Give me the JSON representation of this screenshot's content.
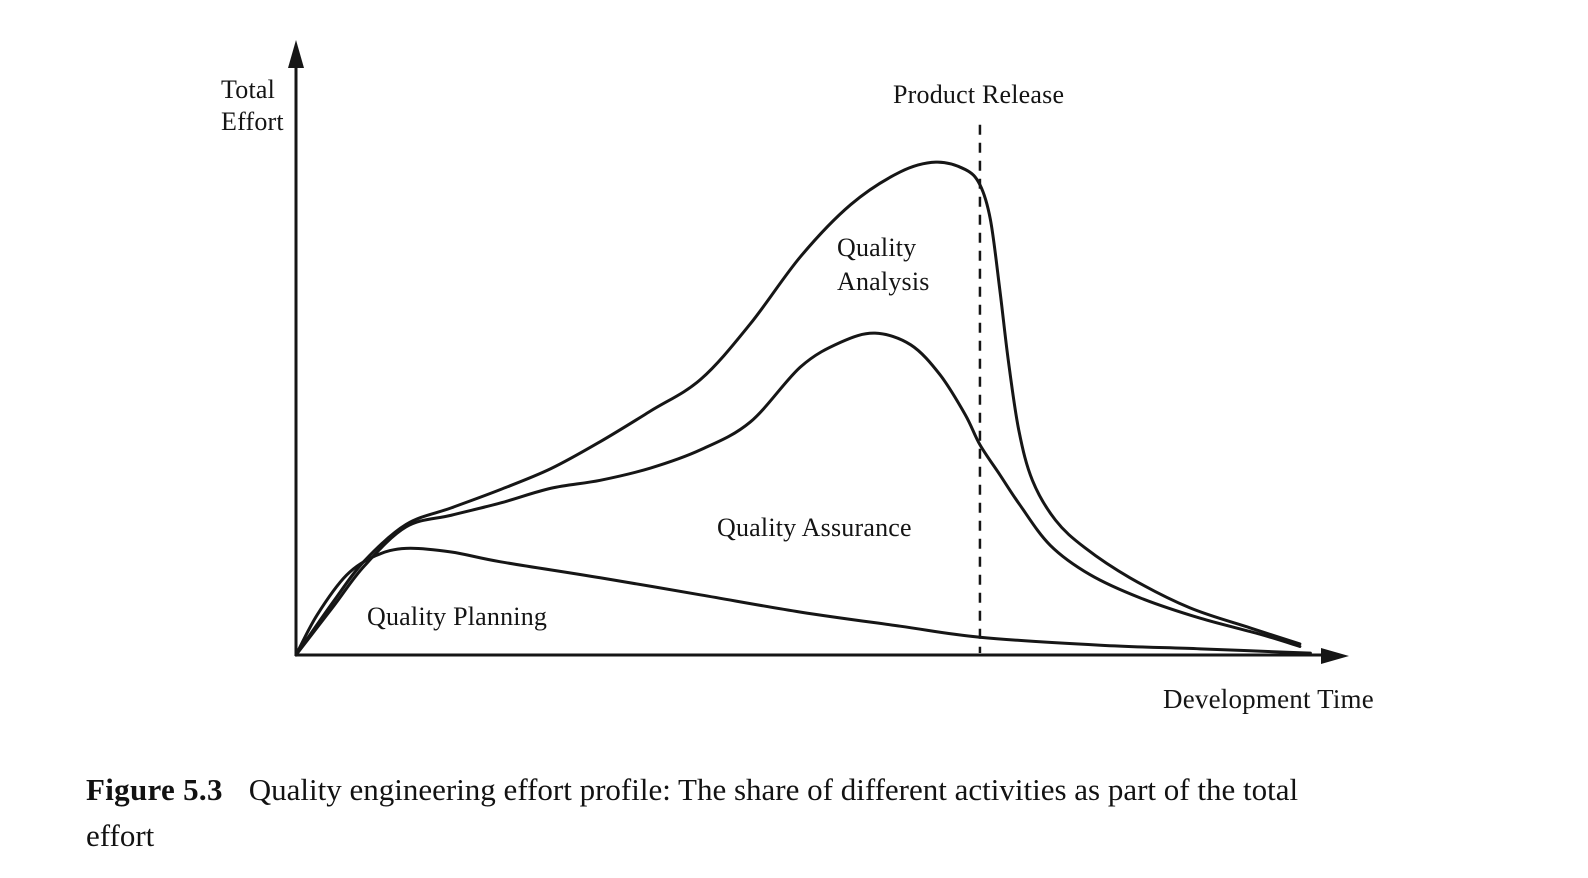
{
  "figure": {
    "caption_label": "Figure 5.3",
    "caption_line1": "Quality engineering effort profile: The share of different activities as part of the total",
    "caption_line2": "effort"
  },
  "chart_data": {
    "type": "line",
    "title": "Quality engineering effort profile",
    "xlabel": "Development Time",
    "ylabel": "Total Effort",
    "xlim": [
      0,
      100
    ],
    "ylim": [
      0,
      100
    ],
    "grid": false,
    "legend": "none (regions labeled inline)",
    "axes_note": "Both axes are unlabeled qualitative scales; point values are estimated relative units 0-100",
    "ink_color": "#161616",
    "annotations": {
      "product_release": {
        "label": "Product Release",
        "x": 65.2,
        "y_top": 86.5,
        "style": "dashed-vertical-line"
      }
    },
    "region_labels": [
      "Quality Analysis",
      "Quality Assurance",
      "Quality Planning"
    ],
    "series": [
      {
        "name": "Total effort (upper boundary of Quality Analysis region)",
        "points": [
          [
            0,
            0
          ],
          [
            3.6,
            8.8
          ],
          [
            6.5,
            15.3
          ],
          [
            10.5,
            21.3
          ],
          [
            14.8,
            24.0
          ],
          [
            19.5,
            27.0
          ],
          [
            24.3,
            30.4
          ],
          [
            29.0,
            34.8
          ],
          [
            33.8,
            39.8
          ],
          [
            38.6,
            45.0
          ],
          [
            43.3,
            54.0
          ],
          [
            48.1,
            65.0
          ],
          [
            52.9,
            73.5
          ],
          [
            57.6,
            78.8
          ],
          [
            61.0,
            80.4
          ],
          [
            63.8,
            79.2
          ],
          [
            65.2,
            76.7
          ],
          [
            66.2,
            71.0
          ],
          [
            67.1,
            59.5
          ],
          [
            67.9,
            48.1
          ],
          [
            68.9,
            36.7
          ],
          [
            70.2,
            28.5
          ],
          [
            72.4,
            22.0
          ],
          [
            75.2,
            17.5
          ],
          [
            79.5,
            12.6
          ],
          [
            85.2,
            7.7
          ],
          [
            91.0,
            4.4
          ],
          [
            95.7,
            1.8
          ]
        ]
      },
      {
        "name": "Upper boundary of Quality Assurance region",
        "points": [
          [
            0,
            0
          ],
          [
            3.6,
            8.0
          ],
          [
            6.5,
            14.5
          ],
          [
            10.5,
            20.9
          ],
          [
            14.8,
            22.8
          ],
          [
            19.5,
            24.8
          ],
          [
            24.3,
            27.2
          ],
          [
            29.0,
            28.5
          ],
          [
            33.8,
            30.5
          ],
          [
            38.6,
            33.5
          ],
          [
            43.3,
            38.0
          ],
          [
            48.1,
            47.0
          ],
          [
            51.9,
            51.0
          ],
          [
            55.2,
            52.5
          ],
          [
            58.6,
            50.6
          ],
          [
            61.4,
            45.7
          ],
          [
            63.8,
            39.2
          ],
          [
            65.2,
            34.3
          ],
          [
            67.1,
            29.4
          ],
          [
            69.0,
            24.5
          ],
          [
            71.9,
            17.9
          ],
          [
            75.7,
            13.1
          ],
          [
            80.5,
            9.3
          ],
          [
            86.2,
            6.0
          ],
          [
            91.9,
            3.4
          ],
          [
            95.7,
            1.4
          ]
        ]
      },
      {
        "name": "Quality Planning (lowest curve)",
        "points": [
          [
            0,
            0
          ],
          [
            2.0,
            6.5
          ],
          [
            4.8,
            13.0
          ],
          [
            7.6,
            16.2
          ],
          [
            10.5,
            17.4
          ],
          [
            14.8,
            16.8
          ],
          [
            19.5,
            15.2
          ],
          [
            29.0,
            12.6
          ],
          [
            38.6,
            9.8
          ],
          [
            48.1,
            7.0
          ],
          [
            57.6,
            4.7
          ],
          [
            65.2,
            2.9
          ],
          [
            76.7,
            1.6
          ],
          [
            86.2,
            1.0
          ],
          [
            96.7,
            0.3
          ]
        ]
      }
    ]
  }
}
